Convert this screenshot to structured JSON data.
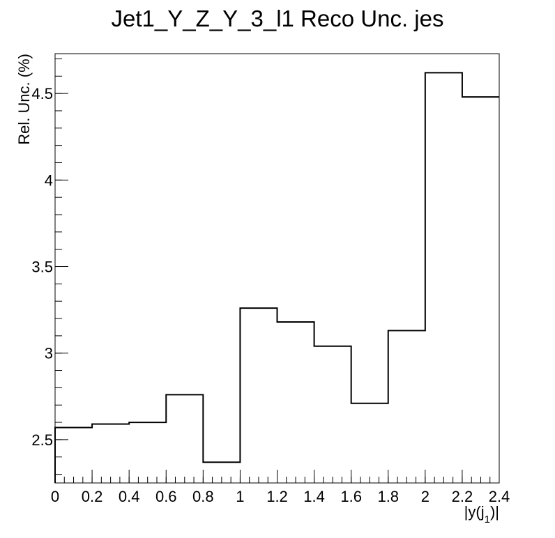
{
  "chart_data": {
    "type": "histogram",
    "title": "Jet1_Y_Z_Y_3_l1 Reco Unc. jes",
    "xlabel": "|y(j",
    "xlabel_subscript": "1",
    "xlabel_suffix": ")|",
    "ylabel": "Rel. Unc. (%)",
    "xlim": [
      0,
      2.4
    ],
    "ylim": [
      2.25,
      4.73
    ],
    "x_ticks": [
      "0",
      "0.2",
      "0.4",
      "0.6",
      "0.8",
      "1",
      "1.2",
      "1.4",
      "1.6",
      "1.8",
      "2",
      "2.2",
      "2.4"
    ],
    "y_ticks": [
      "2.5",
      "3",
      "3.5",
      "4",
      "4.5"
    ],
    "bin_edges": [
      0,
      0.2,
      0.4,
      0.6,
      0.8,
      1.0,
      1.2,
      1.4,
      1.6,
      1.8,
      2.0,
      2.2,
      2.4
    ],
    "values": [
      2.57,
      2.59,
      2.6,
      2.76,
      2.37,
      3.26,
      3.18,
      3.04,
      2.71,
      3.13,
      4.62,
      4.48
    ],
    "grid": false,
    "line_color": "#000000"
  }
}
